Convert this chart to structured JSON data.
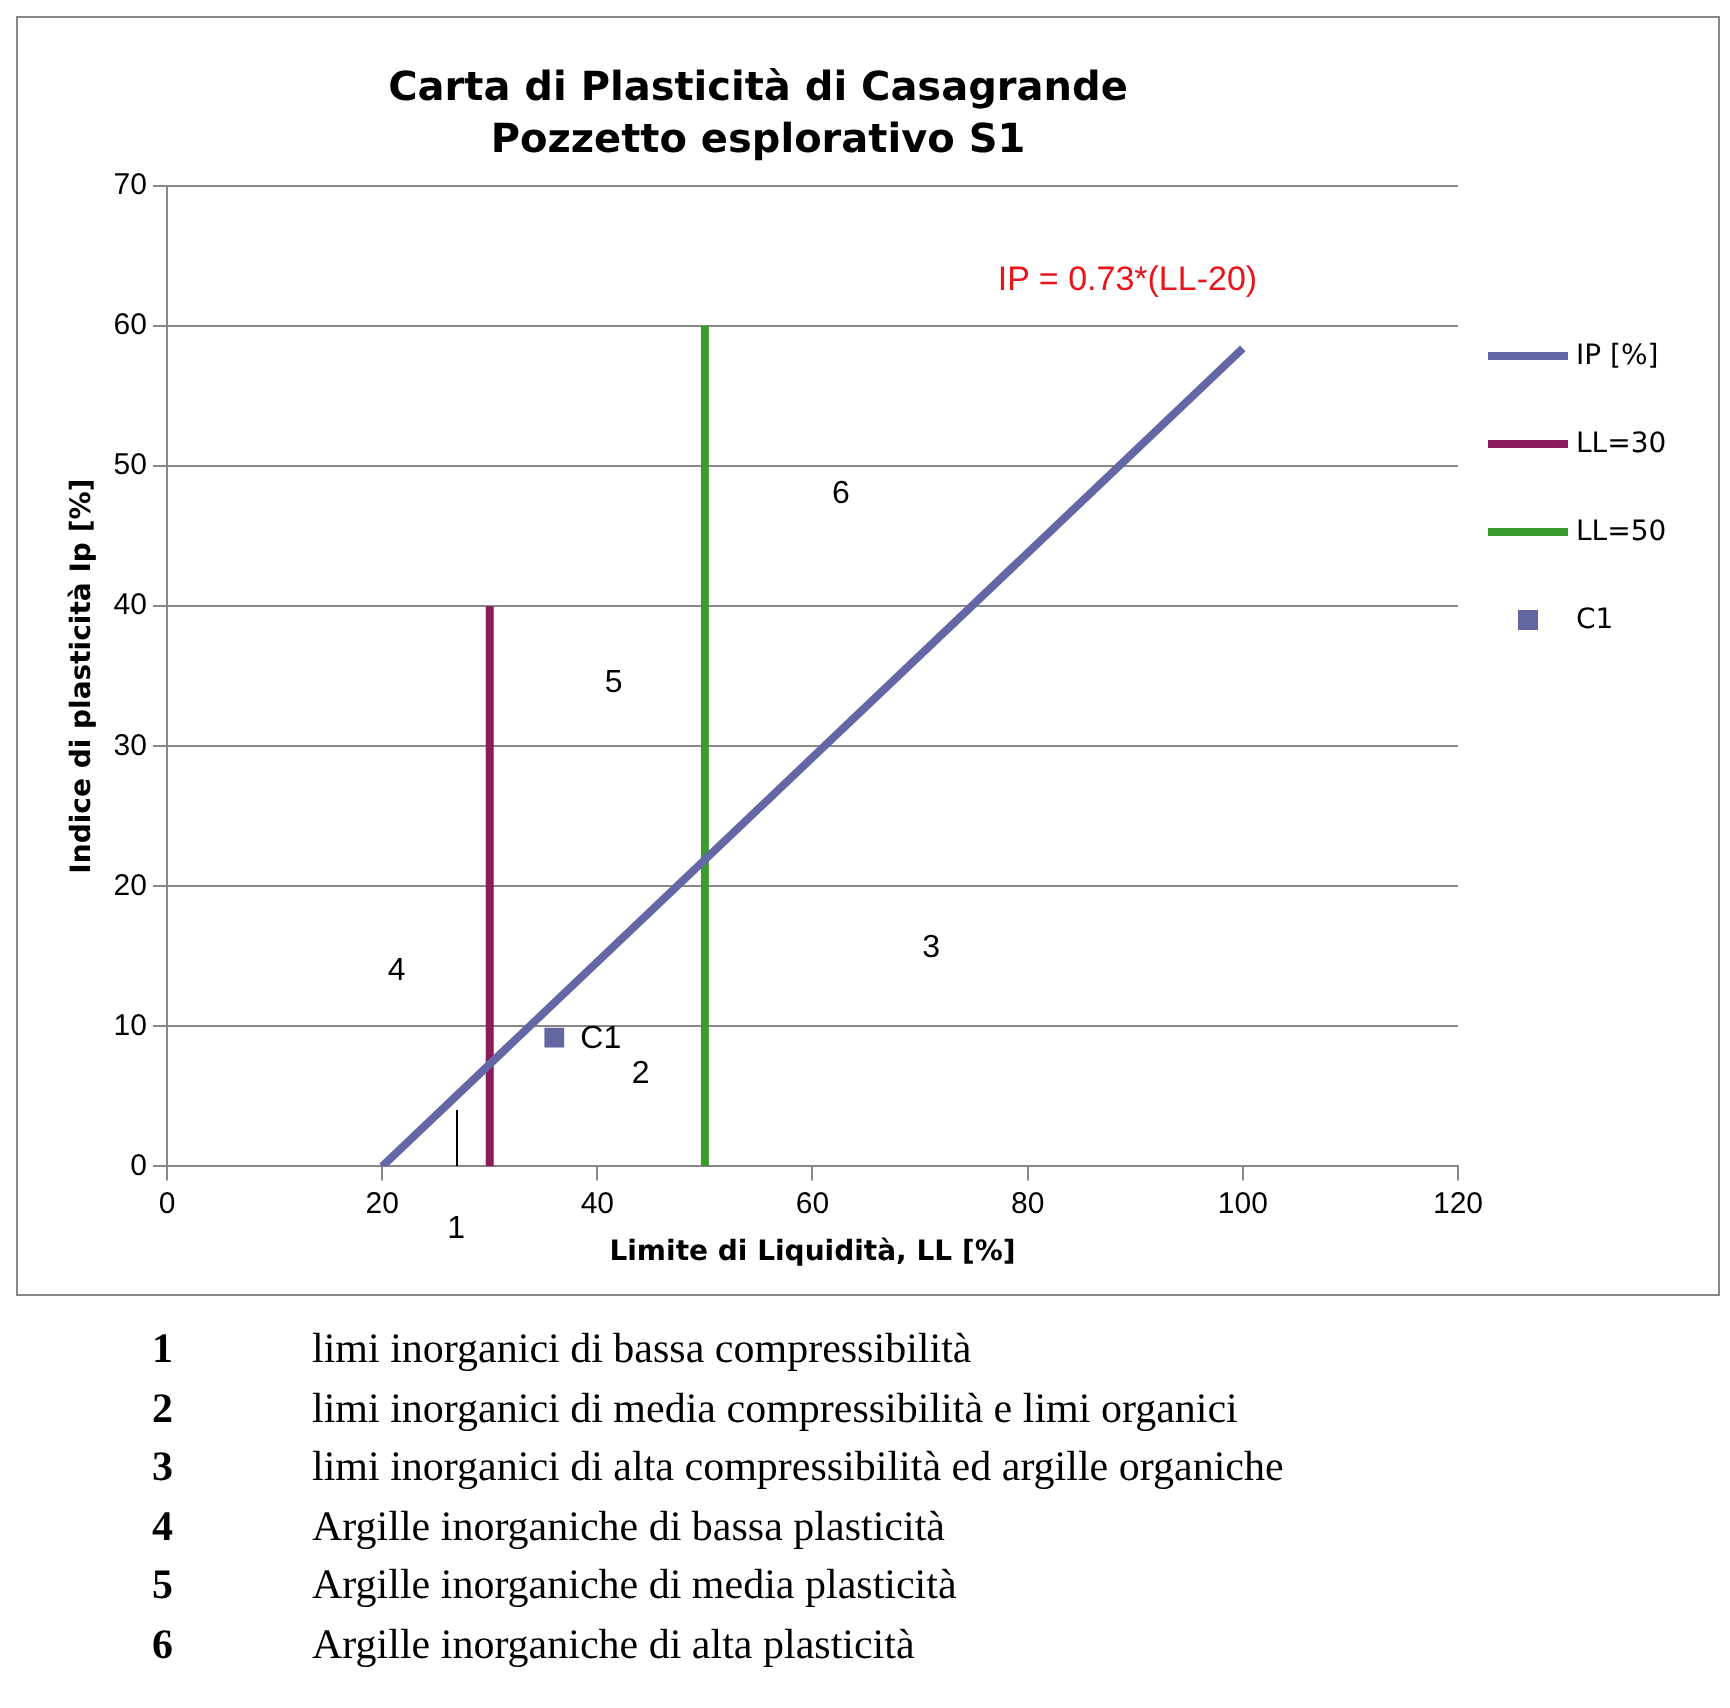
{
  "chart_data": {
    "type": "line",
    "title": "Carta di Plasticità di Casagrande",
    "subtitle": "Pozzetto esplorativo S1",
    "xlabel": "Limite di Liquidità, LL [%]",
    "ylabel": "Indice di plasticità Ip [%]",
    "xlim": [
      0,
      120
    ],
    "xticks": [
      0,
      20,
      40,
      60,
      80,
      100,
      120
    ],
    "ylim": [
      0,
      70
    ],
    "yticks": [
      0,
      10,
      20,
      30,
      40,
      50,
      60,
      70
    ],
    "grid": "y",
    "legend": "right",
    "series": [
      {
        "name": "IP [%]",
        "type": "line",
        "color": "#6466a6",
        "marker": "none",
        "x": [
          20,
          100
        ],
        "values": [
          0,
          58.4
        ]
      },
      {
        "name": "LL=30",
        "type": "line",
        "color": "#8b1c5c",
        "marker": "none",
        "x": [
          30,
          30
        ],
        "values": [
          0,
          40
        ]
      },
      {
        "name": "LL=50",
        "type": "line",
        "color": "#3a9c2f",
        "marker": "none",
        "x": [
          50,
          50
        ],
        "values": [
          0,
          60
        ]
      },
      {
        "name": "C1",
        "type": "scatter",
        "color": "#6466a0",
        "marker": "square",
        "x": [
          36
        ],
        "values": [
          9.2
        ]
      }
    ],
    "annotations": [
      "IP = 0.73*(LL-20)",
      "C1",
      "1",
      "2",
      "3",
      "4",
      "5",
      "6",
      "1 limi inorganici di bassa compressibilità",
      "2 limi inorganici di media compressibilità e limi organici",
      "3 limi inorganici di alta compressibilità ed argille organiche",
      "4 Argille inorganiche di bassa plasticità",
      "5 Argille inorganiche di media plasticità",
      "6 Argille inorganiche di alta plasticità"
    ]
  }
}
